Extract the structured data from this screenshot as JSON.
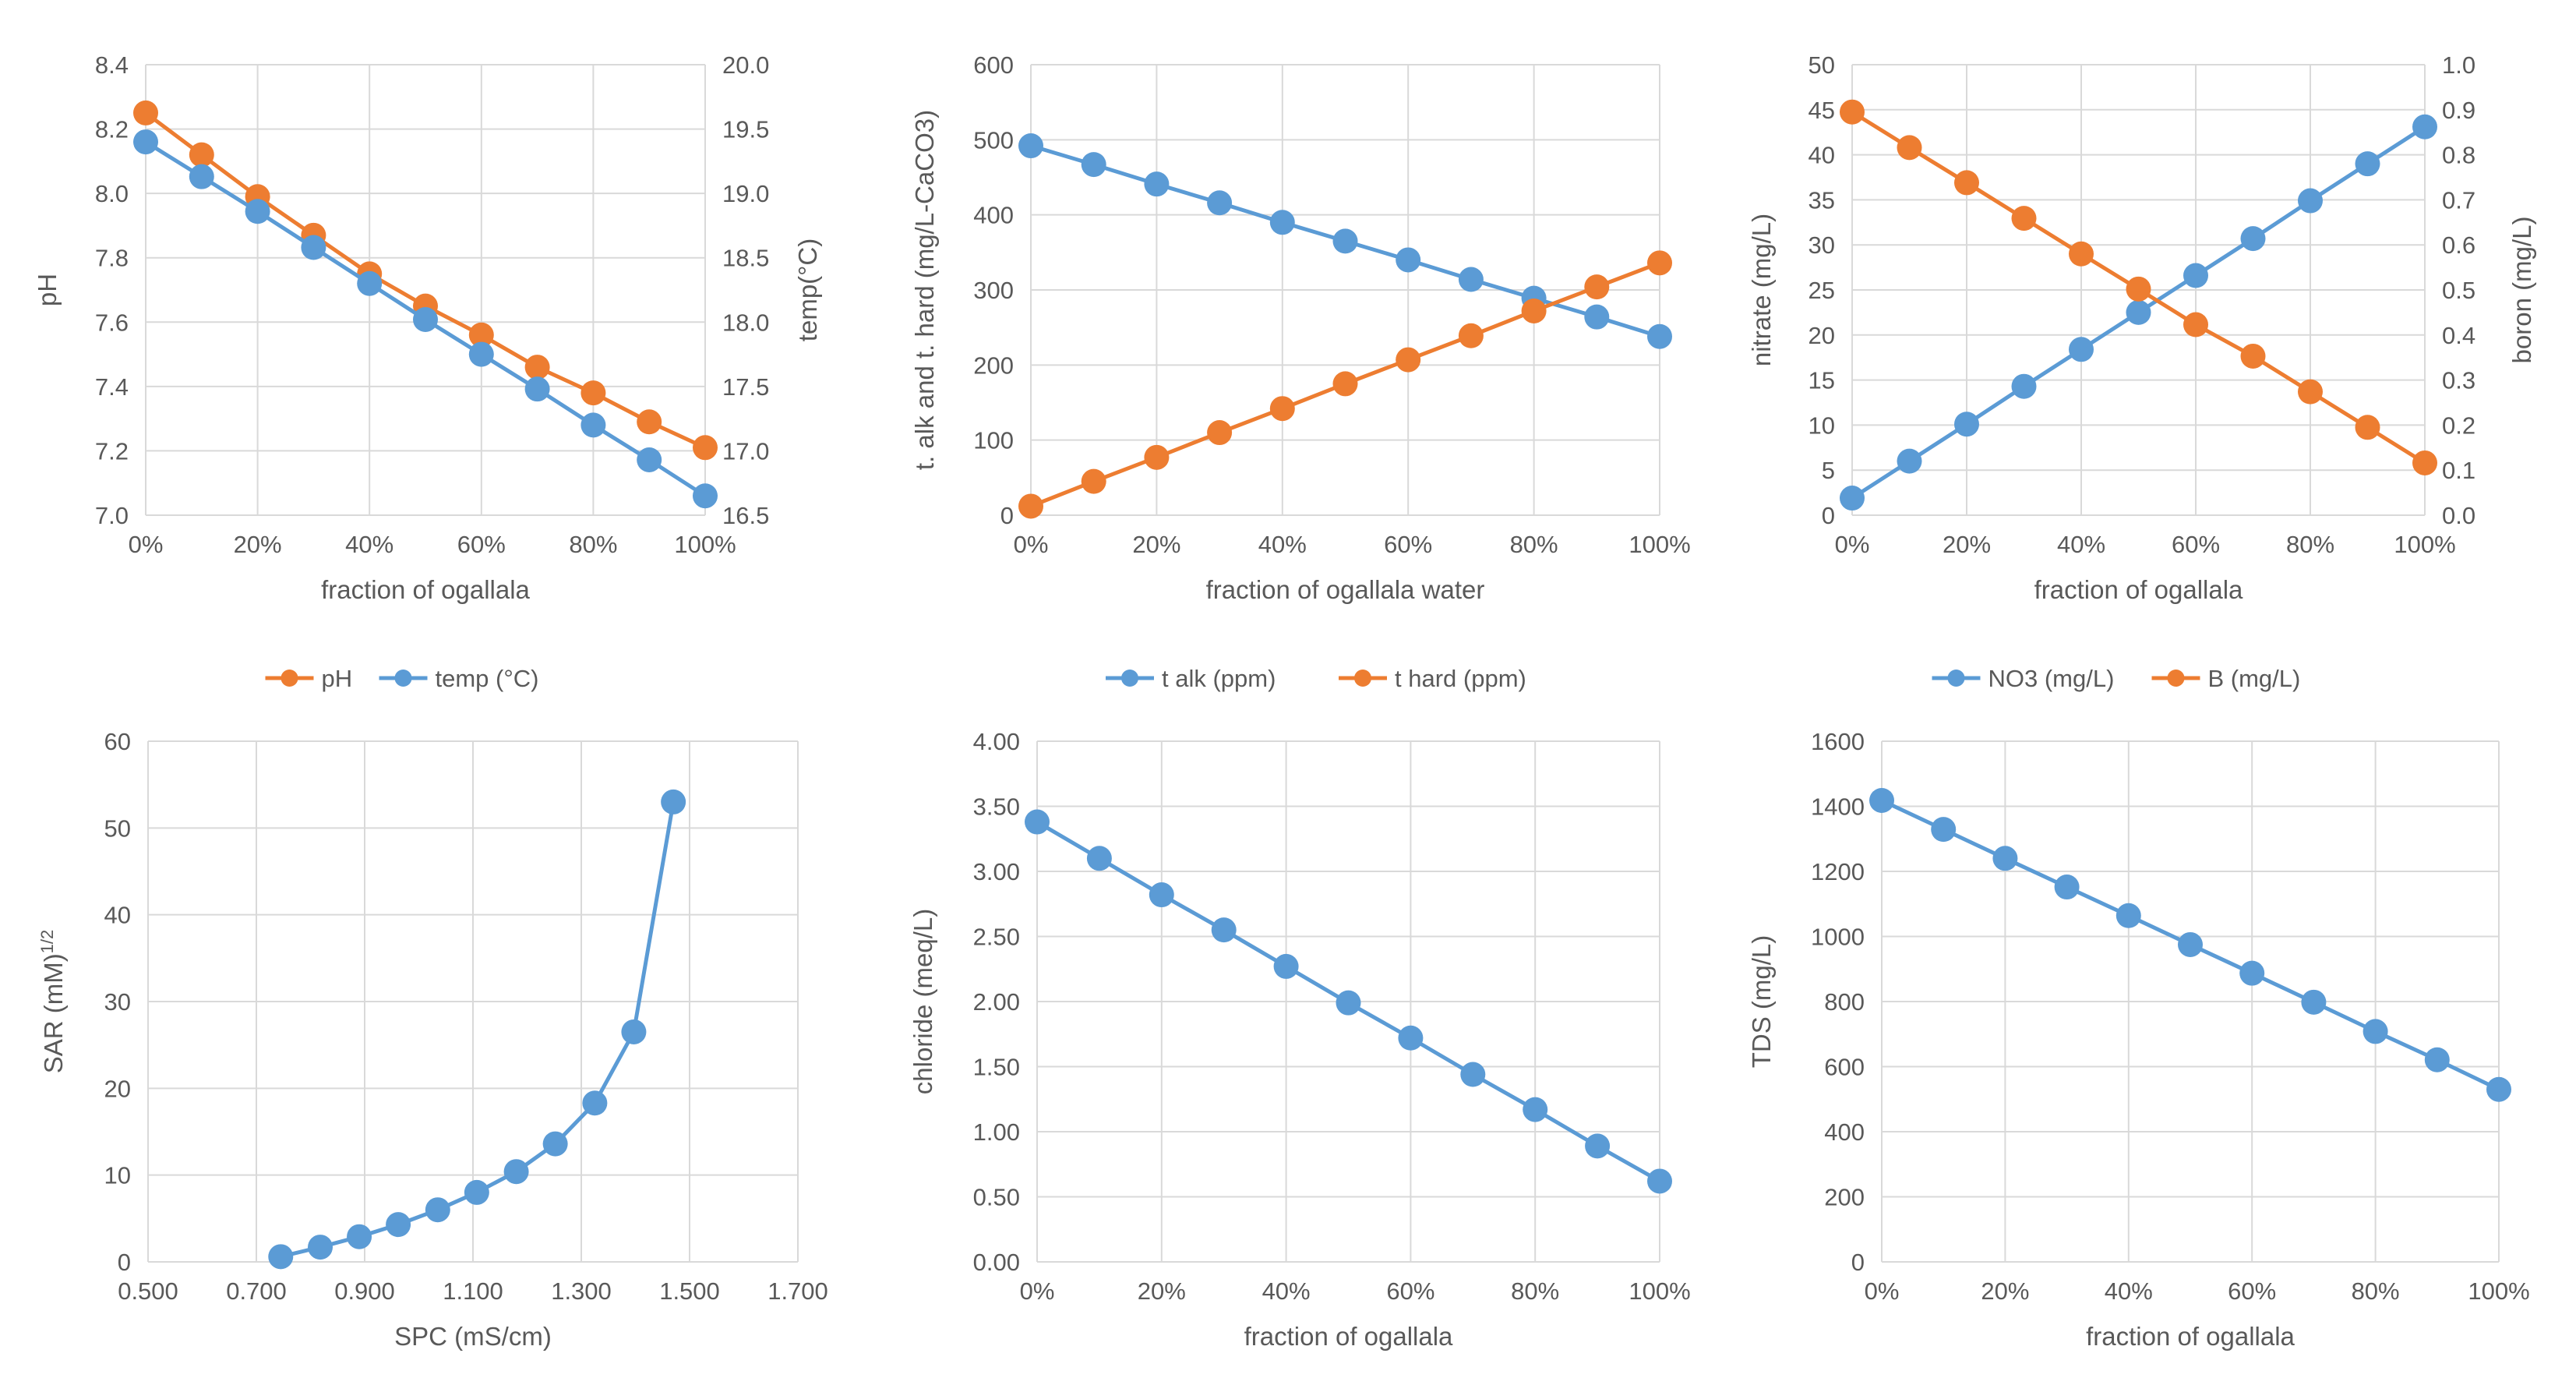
{
  "colors": {
    "orange": "#ED7D31",
    "blue": "#5B9BD5",
    "grid": "#D9D9D9",
    "text": "#595959"
  },
  "chart_data": [
    {
      "id": "ph-temp",
      "type": "line",
      "title": "",
      "xlabel": "fraction of ogallala",
      "ylabel": "pH",
      "y2label": "temp(°C)",
      "x": [
        0,
        10,
        20,
        30,
        40,
        50,
        60,
        70,
        80,
        90,
        100
      ],
      "xticks": [
        "0%",
        "20%",
        "40%",
        "60%",
        "80%",
        "100%"
      ],
      "xlim": [
        0,
        100
      ],
      "ylim": [
        7.0,
        8.4
      ],
      "yticks": [
        "7.0",
        "7.2",
        "7.4",
        "7.6",
        "7.8",
        "8.0",
        "8.2",
        "8.4"
      ],
      "y2lim": [
        16.5,
        20.0
      ],
      "y2ticks": [
        "16.5",
        "17.0",
        "17.5",
        "18.0",
        "18.5",
        "19.0",
        "19.5",
        "20.0"
      ],
      "grid": "vertical and horizontal",
      "legend": "bottom",
      "series": [
        {
          "name": "pH",
          "color": "#ED7D31",
          "axis": "left",
          "values": [
            8.25,
            8.12,
            7.99,
            7.87,
            7.75,
            7.65,
            7.56,
            7.46,
            7.38,
            7.29,
            7.21
          ]
        },
        {
          "name": "temp (°C)",
          "color": "#5B9BD5",
          "axis": "right",
          "values": [
            19.4,
            19.13,
            18.86,
            18.58,
            18.3,
            18.02,
            17.75,
            17.48,
            17.2,
            16.93,
            16.65
          ]
        }
      ]
    },
    {
      "id": "alk-hard",
      "type": "line",
      "title": "",
      "xlabel": "fraction of ogallala water",
      "ylabel": "t. alk and t. hard (mg/L-CaCO3)",
      "x": [
        0,
        10,
        20,
        30,
        40,
        50,
        60,
        70,
        80,
        90,
        100
      ],
      "xticks": [
        "0%",
        "20%",
        "40%",
        "60%",
        "80%",
        "100%"
      ],
      "xlim": [
        0,
        100
      ],
      "ylim": [
        0,
        600
      ],
      "yticks": [
        "0",
        "100",
        "200",
        "300",
        "400",
        "500",
        "600"
      ],
      "grid": "vertical and horizontal",
      "legend": "bottom",
      "series": [
        {
          "name": "t alk (ppm)",
          "color": "#5B9BD5",
          "axis": "left",
          "values": [
            492,
            467,
            441,
            416,
            390,
            365,
            340,
            314,
            289,
            264,
            238
          ]
        },
        {
          "name": "t hard (ppm)",
          "color": "#ED7D31",
          "axis": "left",
          "values": [
            12,
            45,
            77,
            110,
            142,
            175,
            207,
            239,
            272,
            304,
            336
          ]
        }
      ]
    },
    {
      "id": "nitrate-boron",
      "type": "line",
      "title": "",
      "xlabel": "fraction of ogallala",
      "ylabel": "nitrate (mg/L)",
      "y2label": "boron (mg/L)",
      "x": [
        0,
        10,
        20,
        30,
        40,
        50,
        60,
        70,
        80,
        90,
        100
      ],
      "xticks": [
        "0%",
        "20%",
        "40%",
        "60%",
        "80%",
        "100%"
      ],
      "xlim": [
        0,
        100
      ],
      "ylim": [
        0,
        50
      ],
      "yticks": [
        "0",
        "5",
        "10",
        "15",
        "20",
        "25",
        "30",
        "35",
        "40",
        "45",
        "50"
      ],
      "y2lim": [
        0,
        1.0
      ],
      "y2ticks": [
        "0.0",
        "0.1",
        "0.2",
        "0.3",
        "0.4",
        "0.5",
        "0.6",
        "0.7",
        "0.8",
        "0.9",
        "1.0"
      ],
      "grid": "vertical and horizontal",
      "legend": "bottom",
      "series": [
        {
          "name": "NO3 (mg/L)",
          "color": "#5B9BD5",
          "axis": "left",
          "values": [
            1.9,
            6.0,
            10.1,
            14.3,
            18.4,
            22.5,
            26.6,
            30.7,
            34.9,
            39.0,
            43.1
          ]
        },
        {
          "name": "B (mg/L)",
          "color": "#ED7D31",
          "axis": "right",
          "values": [
            0.895,
            0.816,
            0.738,
            0.659,
            0.58,
            0.502,
            0.423,
            0.353,
            0.274,
            0.195,
            0.116
          ]
        }
      ]
    },
    {
      "id": "sar-spc",
      "type": "scatter",
      "title": "",
      "xlabel": "SPC (mS/cm)",
      "ylabel": "SAR (mM)",
      "ylabel_sup": "1/2",
      "xlim": [
        0.5,
        1.7
      ],
      "xtick_values": [
        0.5,
        0.7,
        0.9,
        1.1,
        1.3,
        1.5,
        1.7
      ],
      "xticks": [
        "0.500",
        "0.700",
        "0.900",
        "1.100",
        "1.300",
        "1.500",
        "1.700"
      ],
      "ylim": [
        0,
        60
      ],
      "yticks": [
        "0",
        "10",
        "20",
        "30",
        "40",
        "50",
        "60"
      ],
      "grid": "vertical and horizontal",
      "series": [
        {
          "name": "",
          "color": "#5B9BD5",
          "points": [
            [
              0.745,
              0.6
            ],
            [
              0.818,
              1.7
            ],
            [
              0.89,
              2.9
            ],
            [
              0.962,
              4.3
            ],
            [
              1.035,
              6.0
            ],
            [
              1.107,
              8.0
            ],
            [
              1.18,
              10.4
            ],
            [
              1.252,
              13.6
            ],
            [
              1.325,
              18.3
            ],
            [
              1.397,
              26.5
            ],
            [
              1.47,
              53.0
            ]
          ]
        }
      ]
    },
    {
      "id": "chloride",
      "type": "line",
      "title": "",
      "xlabel": "fraction of ogallala",
      "ylabel": "chloride (meq/L)",
      "x": [
        0,
        10,
        20,
        30,
        40,
        50,
        60,
        70,
        80,
        90,
        100
      ],
      "xticks": [
        "0%",
        "20%",
        "40%",
        "60%",
        "80%",
        "100%"
      ],
      "xlim": [
        0,
        100
      ],
      "ylim": [
        0,
        4
      ],
      "yticks": [
        "0.00",
        "0.50",
        "1.00",
        "1.50",
        "2.00",
        "2.50",
        "3.00",
        "3.50",
        "4.00"
      ],
      "grid": "vertical and horizontal",
      "series": [
        {
          "name": "",
          "color": "#5B9BD5",
          "axis": "left",
          "values": [
            3.38,
            3.1,
            2.82,
            2.55,
            2.27,
            1.99,
            1.72,
            1.44,
            1.17,
            0.89,
            0.62
          ]
        }
      ]
    },
    {
      "id": "tds",
      "type": "line",
      "title": "",
      "xlabel": "fraction of ogallala",
      "ylabel": "TDS (mg/L)",
      "x": [
        0,
        10,
        20,
        30,
        40,
        50,
        60,
        70,
        80,
        90,
        100
      ],
      "xticks": [
        "0%",
        "20%",
        "40%",
        "60%",
        "80%",
        "100%"
      ],
      "xlim": [
        0,
        100
      ],
      "ylim": [
        0,
        1600
      ],
      "yticks": [
        "0",
        "200",
        "400",
        "600",
        "800",
        "1000",
        "1200",
        "1400",
        "1600"
      ],
      "grid": "vertical and horizontal",
      "series": [
        {
          "name": "",
          "color": "#5B9BD5",
          "axis": "left",
          "values": [
            1418,
            1329,
            1240,
            1152,
            1064,
            975,
            887,
            798,
            708,
            621,
            530
          ]
        }
      ]
    }
  ]
}
